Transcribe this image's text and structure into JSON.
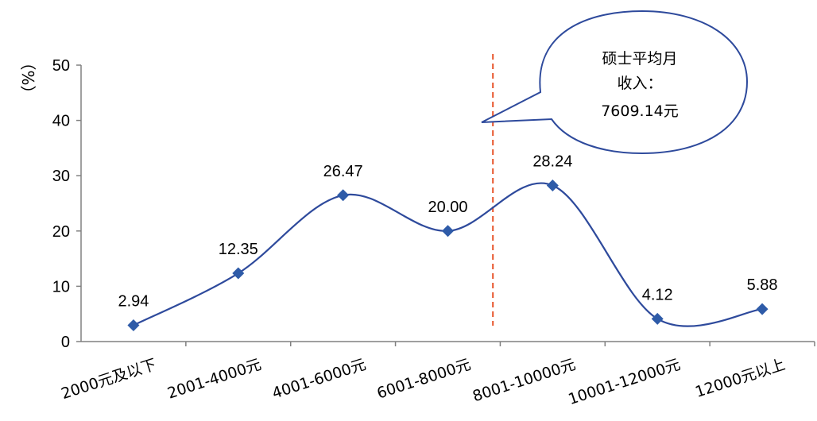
{
  "chart_data": {
    "type": "line",
    "smooth": true,
    "categories": [
      "2000元及以下",
      "2001-4000元",
      "4001-6000元",
      "6001-8000元",
      "8001-10000元",
      "10001-12000元",
      "12000元以上"
    ],
    "series": [
      {
        "values": [
          2.94,
          12.35,
          26.47,
          20.0,
          28.24,
          4.12,
          5.88
        ]
      }
    ],
    "data_labels": [
      "2.94",
      "12.35",
      "26.47",
      "20.00",
      "28.24",
      "4.12",
      "5.88"
    ],
    "y_unit": "（%）",
    "ylim": [
      0,
      50
    ],
    "yticks": [
      "0",
      "10",
      "20",
      "30",
      "40",
      "50"
    ],
    "grid": false,
    "line_color": "#2E4A9C",
    "marker_color": "#2E5BA8",
    "marker": "diamond",
    "reference_line": {
      "color": "#E8552B",
      "style": "dashed",
      "position": "between 6001-8000元 and 8001-10000元"
    },
    "annotation": {
      "lines": [
        "硕士平均月",
        "收入：",
        "7609.14元"
      ],
      "shape": "speech-bubble",
      "border_color": "#2E4A9C"
    }
  }
}
